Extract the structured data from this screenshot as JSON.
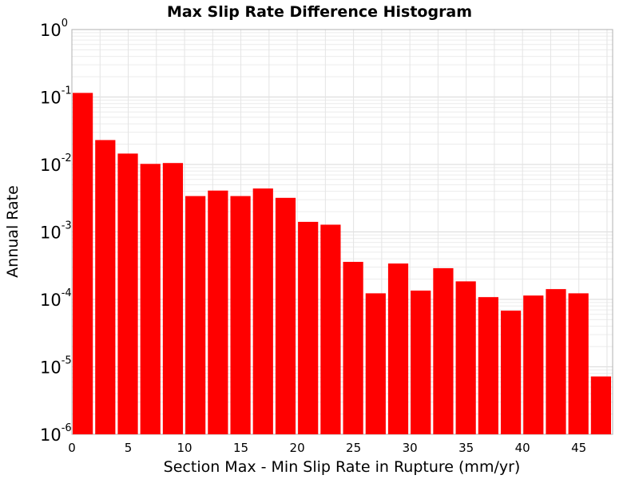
{
  "chart_data": {
    "type": "bar",
    "title": "Max Slip Rate Difference Histogram",
    "xlabel": "Section Max - Min Slip Rate in Rupture (mm/yr)",
    "ylabel": "Annual Rate",
    "yscale": "log",
    "ylim": [
      1e-06,
      1
    ],
    "xlim": [
      0,
      48
    ],
    "bin_width": 2,
    "x_ticks": [
      0,
      5,
      10,
      15,
      20,
      25,
      30,
      35,
      40,
      45
    ],
    "y_ticks": [
      {
        "base": "10",
        "exp": "0",
        "value": 1
      },
      {
        "base": "10",
        "exp": "-1",
        "value": 0.1
      },
      {
        "base": "10",
        "exp": "-2",
        "value": 0.01
      },
      {
        "base": "10",
        "exp": "-3",
        "value": 0.001
      },
      {
        "base": "10",
        "exp": "-4",
        "value": 0.0001
      },
      {
        "base": "10",
        "exp": "-5",
        "value": 1e-05
      },
      {
        "base": "10",
        "exp": "-6",
        "value": 1e-06
      }
    ],
    "bins_start": [
      0,
      2,
      4,
      6,
      8,
      10,
      12,
      14,
      16,
      18,
      20,
      22,
      24,
      26,
      28,
      30,
      32,
      34,
      36,
      38,
      40,
      42,
      44,
      46
    ],
    "values": [
      0.115,
      0.023,
      0.0145,
      0.0102,
      0.0105,
      0.0034,
      0.0041,
      0.0034,
      0.0044,
      0.0032,
      0.00141,
      0.00128,
      0.00036,
      0.000123,
      0.00034,
      0.000135,
      0.00029,
      0.000185,
      0.000108,
      6.8e-05,
      0.000114,
      0.000142,
      0.000123,
      7.2e-06
    ],
    "bar_color": "#ff0000",
    "grid": true
  }
}
